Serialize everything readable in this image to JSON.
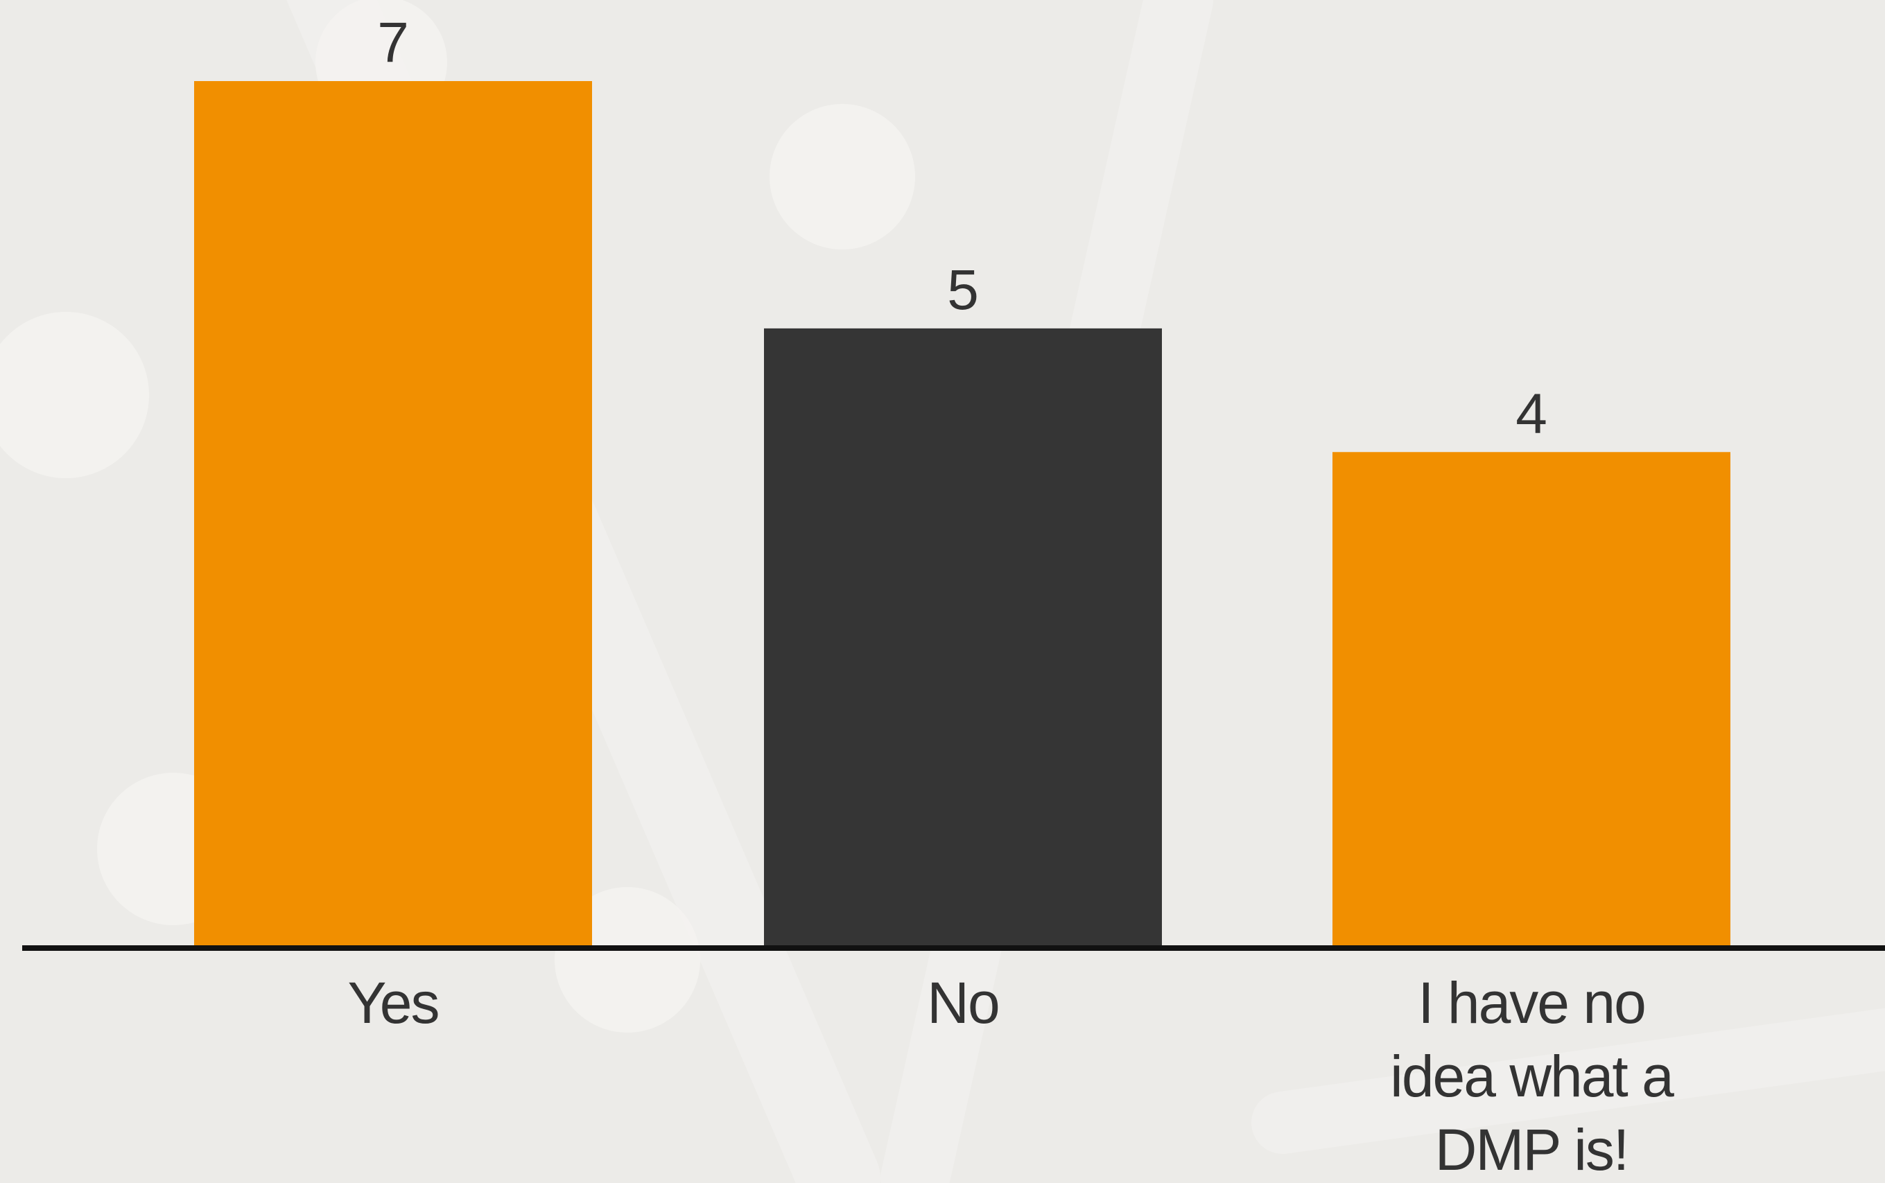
{
  "colors": {
    "background": "#ecebe8",
    "accent_orange": "#f18f00",
    "dark_bar": "#353535",
    "text": "#333333",
    "axis": "#111111"
  },
  "chart_data": {
    "type": "bar",
    "categories": [
      "Yes",
      "No",
      "I have no idea what a DMP is!"
    ],
    "category_label_lines": [
      [
        "Yes"
      ],
      [
        "No"
      ],
      [
        "I have no",
        "idea what a",
        "DMP is!"
      ]
    ],
    "values": [
      7,
      5,
      4
    ],
    "bar_colors": [
      "#f18f00",
      "#353535",
      "#f18f00"
    ],
    "data_labels": [
      "7",
      "5",
      "4"
    ],
    "ylim": [
      0,
      7
    ],
    "grid": false,
    "legend": "none",
    "title": "",
    "xlabel": "",
    "ylabel": ""
  }
}
